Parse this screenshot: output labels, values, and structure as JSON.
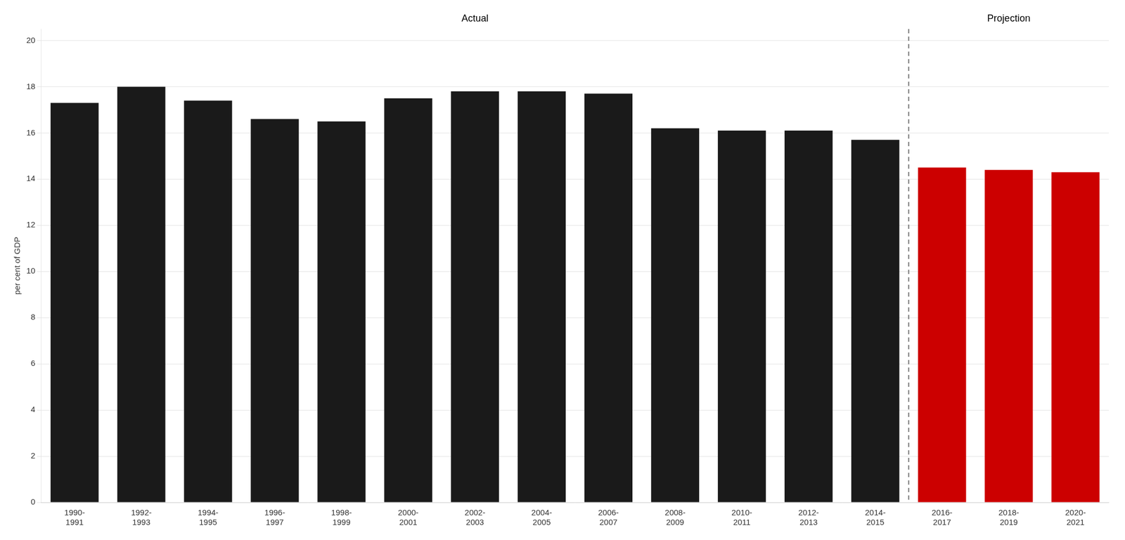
{
  "chart_data": {
    "type": "bar",
    "ylabel": "per cent of GDP",
    "categories": [
      "1990-\n1991",
      "1992-\n1993",
      "1994-\n1995",
      "1996-\n1997",
      "1998-\n1999",
      "2000-\n2001",
      "2002-\n2003",
      "2004-\n2005",
      "2006-\n2007",
      "2008-\n2009",
      "2010-\n2011",
      "2012-\n2013",
      "2014-\n2015",
      "2016-\n2017",
      "2018-\n2019",
      "2020-\n2021"
    ],
    "values": [
      17.3,
      18.0,
      17.4,
      16.6,
      16.5,
      17.5,
      17.8,
      17.8,
      17.7,
      16.2,
      16.1,
      16.1,
      15.7,
      14.5,
      14.4,
      14.3
    ],
    "colors": [
      "#1a1a1a",
      "#1a1a1a",
      "#1a1a1a",
      "#1a1a1a",
      "#1a1a1a",
      "#1a1a1a",
      "#1a1a1a",
      "#1a1a1a",
      "#1a1a1a",
      "#1a1a1a",
      "#1a1a1a",
      "#1a1a1a",
      "#1a1a1a",
      "#cc0000",
      "#cc0000",
      "#cc0000"
    ],
    "ylim": [
      0,
      20.5
    ],
    "yticks": [
      0,
      2,
      4,
      6,
      8,
      10,
      12,
      14,
      16,
      18,
      20
    ],
    "grid": true,
    "annotations": [
      "Actual",
      "Projection"
    ]
  }
}
